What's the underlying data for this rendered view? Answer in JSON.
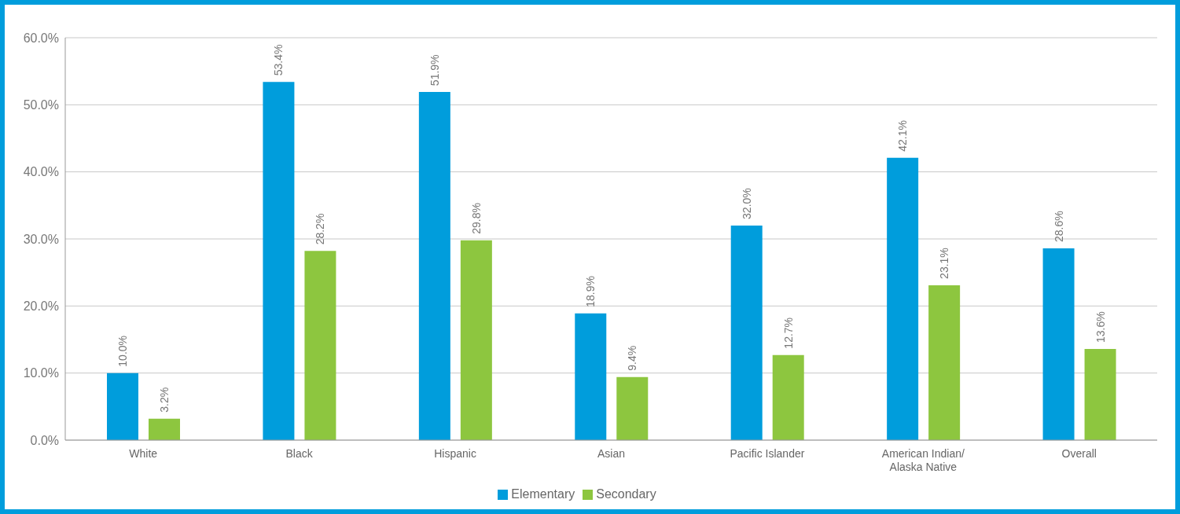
{
  "chart_data": {
    "type": "bar",
    "categories": [
      "White",
      "Black",
      "Hispanic",
      "Asian",
      "Pacific Islander",
      "American Indian/\nAlaska Native",
      "Overall"
    ],
    "series": [
      {
        "name": "Elementary",
        "color": "#009ddc",
        "values": [
          10.0,
          53.4,
          51.9,
          18.9,
          32.0,
          42.1,
          28.6
        ],
        "value_labels": [
          "10.0%",
          "53.4%",
          "51.9%",
          "18.9%",
          "32.0%",
          "42.1%",
          "28.6%"
        ]
      },
      {
        "name": "Secondary",
        "color": "#8dc63f",
        "values": [
          3.2,
          28.2,
          29.8,
          9.4,
          12.7,
          23.1,
          13.6
        ],
        "value_labels": [
          "3.2%",
          "28.2%",
          "29.8%",
          "9.4%",
          "12.7%",
          "23.1%",
          "13.6%"
        ]
      }
    ],
    "ylim": [
      0,
      60
    ],
    "yticks": [
      {
        "value": 0,
        "label": "0.0%"
      },
      {
        "value": 10,
        "label": "10.0%"
      },
      {
        "value": 20,
        "label": "20.0%"
      },
      {
        "value": 30,
        "label": "30.0%"
      },
      {
        "value": 40,
        "label": "40.0%"
      },
      {
        "value": 50,
        "label": "50.0%"
      },
      {
        "value": 60,
        "label": "60.0%"
      }
    ],
    "grid": "y",
    "legend": "bottom"
  }
}
